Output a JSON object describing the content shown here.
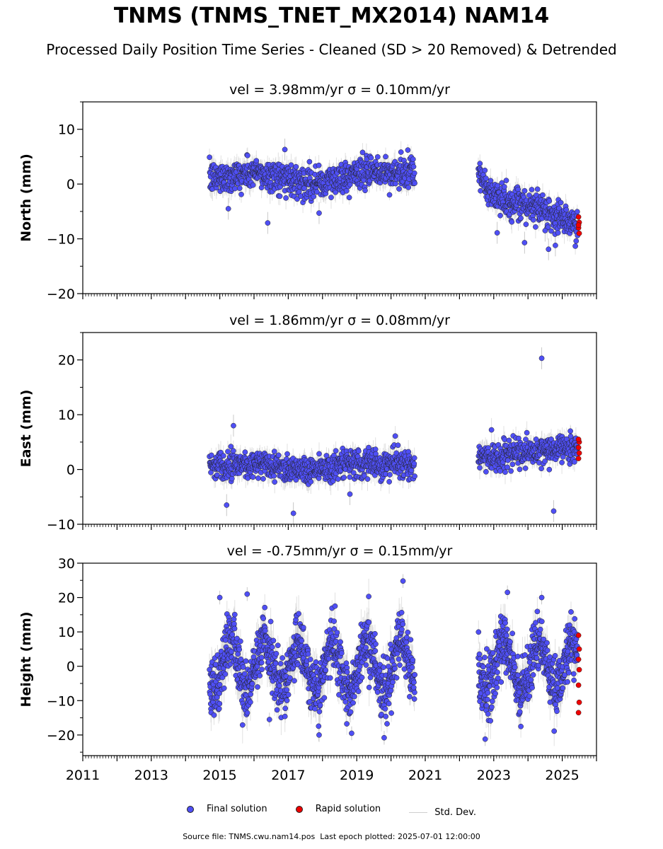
{
  "title": "TNMS (TNMS_TNET_MX2014) NAM14",
  "subtitle": "Processed Daily Position Time Series - Cleaned (SD > 20 Removed) & Detrended",
  "legend": {
    "final": "Final solution",
    "rapid": "Rapid solution",
    "std": "Std. Dev."
  },
  "footer": {
    "source_label": "Source file: TNMS.cwu.nam14.pos",
    "last_epoch": "Last epoch plotted: 2025-07-01 12:00:00"
  },
  "colors": {
    "final": "#4f4ff5",
    "rapid": "#ee0000",
    "std": "#c8c8c8",
    "marker_edge": "#222222"
  },
  "chart_data": [
    {
      "type": "scatter",
      "title": "vel = 3.98mm/yr   σ = 0.10mm/yr",
      "ylabel": "North (mm)",
      "xlim": [
        2011,
        2026
      ],
      "ylim": [
        -20,
        15
      ],
      "yticks": [
        -20,
        -10,
        0,
        10
      ],
      "ytick_labels": [
        "−20",
        "−10",
        "0",
        "10"
      ],
      "x_range_final": [
        [
          2014.7,
          2020.7
        ],
        [
          2022.55,
          2025.45
        ]
      ],
      "x_range_rapid": [
        2025.45,
        2025.5
      ],
      "approx_profile": [
        [
          2014.7,
          1.0
        ],
        [
          2016.0,
          2.0
        ],
        [
          2017.0,
          1.0
        ],
        [
          2018.0,
          0.0
        ],
        [
          2019.0,
          2.0
        ],
        [
          2020.7,
          2.0
        ],
        [
          2022.55,
          2.0
        ],
        [
          2022.8,
          -1.0
        ],
        [
          2023.5,
          -4.0
        ],
        [
          2024.3,
          -4.0
        ],
        [
          2025.45,
          -8.0
        ]
      ],
      "outliers": [
        [
          2015.25,
          -4.5
        ],
        [
          2016.4,
          -7.1
        ],
        [
          2016.9,
          6.3
        ],
        [
          2017.9,
          -5.3
        ],
        [
          2023.1,
          -8.9
        ],
        [
          2023.9,
          -10.7
        ],
        [
          2024.6,
          -11.9
        ],
        [
          2024.8,
          -11.2
        ],
        [
          2024.5,
          -8.5
        ]
      ],
      "rapid_values": [
        -6,
        -7,
        -8,
        -9,
        -7.5
      ]
    },
    {
      "type": "scatter",
      "title": "vel = 1.86mm/yr   σ = 0.08mm/yr",
      "ylabel": "East (mm)",
      "xlim": [
        2011,
        2026
      ],
      "ylim": [
        -10,
        25
      ],
      "yticks": [
        -10,
        0,
        10,
        20
      ],
      "ytick_labels": [
        "−10",
        "0",
        "10",
        "20"
      ],
      "x_range_final": [
        [
          2014.7,
          2020.7
        ],
        [
          2022.55,
          2025.45
        ]
      ],
      "x_range_rapid": [
        2025.45,
        2025.5
      ],
      "approx_profile": [
        [
          2014.7,
          1.0
        ],
        [
          2016.0,
          1.0
        ],
        [
          2017.5,
          0.0
        ],
        [
          2019.0,
          1.0
        ],
        [
          2020.7,
          1.0
        ],
        [
          2022.55,
          2.0
        ],
        [
          2024.0,
          3.0
        ],
        [
          2025.45,
          4.0
        ]
      ],
      "outliers": [
        [
          2015.2,
          -6.5
        ],
        [
          2015.4,
          8.0
        ],
        [
          2017.15,
          -8.0
        ],
        [
          2018.8,
          -4.5
        ],
        [
          2024.4,
          20.3
        ],
        [
          2024.75,
          -7.6
        ]
      ],
      "rapid_values": [
        2,
        3,
        4,
        5,
        5.5
      ]
    },
    {
      "type": "scatter",
      "title": "vel = -0.75mm/yr   σ = 0.15mm/yr",
      "ylabel": "Height (mm)",
      "xlim": [
        2011,
        2026
      ],
      "ylim": [
        -26,
        30
      ],
      "yticks": [
        -20,
        -10,
        0,
        10,
        20,
        30
      ],
      "ytick_labels": [
        "−20",
        "−10",
        "0",
        "10",
        "20",
        "30"
      ],
      "xticks": [
        2011,
        2013,
        2015,
        2017,
        2019,
        2021,
        2023,
        2025
      ],
      "xtick_labels": [
        "2011",
        "2013",
        "2015",
        "2017",
        "2019",
        "2021",
        "2023",
        "2025"
      ],
      "x_range_final": [
        [
          2014.7,
          2020.7
        ],
        [
          2022.55,
          2025.45
        ]
      ],
      "x_range_rapid": [
        2025.45,
        2025.5
      ],
      "seasonal_amplitude": 7,
      "outliers": [
        [
          2015.0,
          20.0
        ],
        [
          2015.8,
          21.0
        ],
        [
          2016.45,
          -15.5
        ],
        [
          2017.9,
          -20.0
        ],
        [
          2018.85,
          -19.5
        ],
        [
          2019.8,
          -20.8
        ],
        [
          2020.35,
          24.8
        ],
        [
          2022.75,
          -21.2
        ],
        [
          2023.4,
          21.5
        ],
        [
          2024.4,
          20.0
        ]
      ],
      "rapid_values": [
        9,
        5,
        2,
        -1,
        -5.5,
        -10.5,
        -13.5
      ]
    }
  ]
}
